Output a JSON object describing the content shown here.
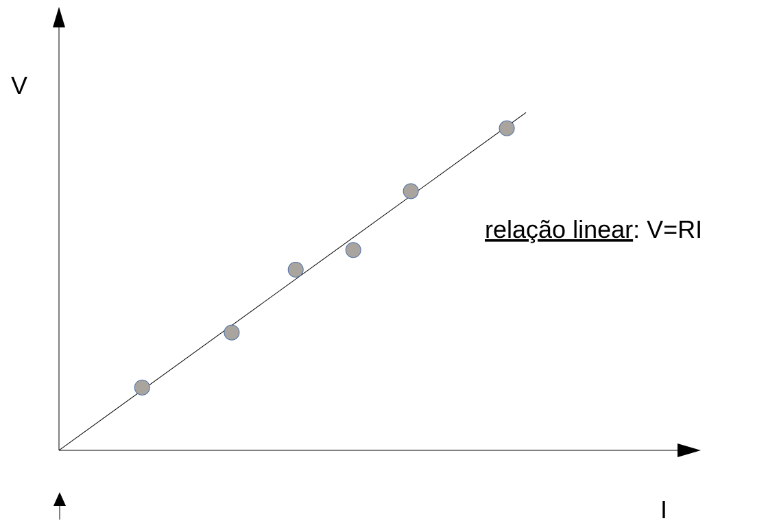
{
  "chart_data": {
    "type": "scatter",
    "xlabel": "I",
    "ylabel": "V",
    "annotation": {
      "underlined": "relação linear",
      "rest": ": V=RI"
    },
    "xlim": [
      0,
      1
    ],
    "ylim": [
      0,
      1
    ],
    "grid": false,
    "ticks": false,
    "points": [
      {
        "x": 0.13,
        "y": 0.16
      },
      {
        "x": 0.27,
        "y": 0.3
      },
      {
        "x": 0.37,
        "y": 0.46
      },
      {
        "x": 0.46,
        "y": 0.51
      },
      {
        "x": 0.55,
        "y": 0.66
      },
      {
        "x": 0.7,
        "y": 0.82
      }
    ],
    "fit_line": {
      "x": [
        0.0,
        0.73
      ],
      "y": [
        0.0,
        0.86
      ]
    },
    "colors": {
      "point_fill": "#aaa49f",
      "point_stroke": "#4a6fa5",
      "line": "#000000",
      "axis": "#000000"
    }
  }
}
